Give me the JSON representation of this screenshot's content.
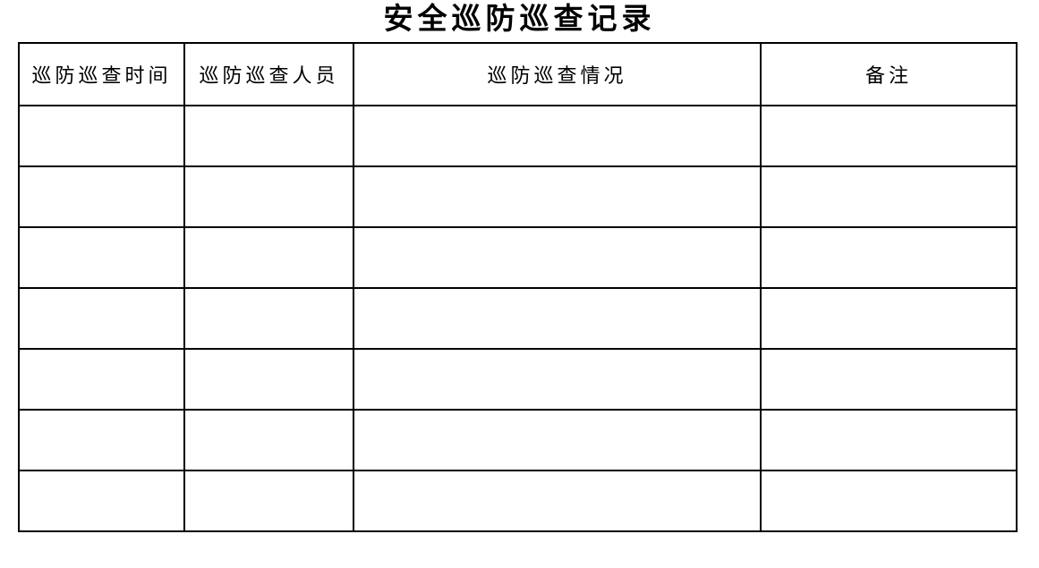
{
  "page": {
    "title": "安全巡防巡查记录",
    "background_color": "#ffffff",
    "text_color": "#000000",
    "border_color": "#000000"
  },
  "table": {
    "columns": [
      {
        "label": "巡防巡查时间"
      },
      {
        "label": "巡防巡查人员"
      },
      {
        "label": "巡防巡查情况"
      },
      {
        "label": "备注"
      }
    ],
    "rows": [
      [
        "",
        "",
        "",
        ""
      ],
      [
        "",
        "",
        "",
        ""
      ],
      [
        "",
        "",
        "",
        ""
      ],
      [
        "",
        "",
        "",
        ""
      ],
      [
        "",
        "",
        "",
        ""
      ],
      [
        "",
        "",
        "",
        ""
      ],
      [
        "",
        "",
        "",
        ""
      ]
    ]
  }
}
